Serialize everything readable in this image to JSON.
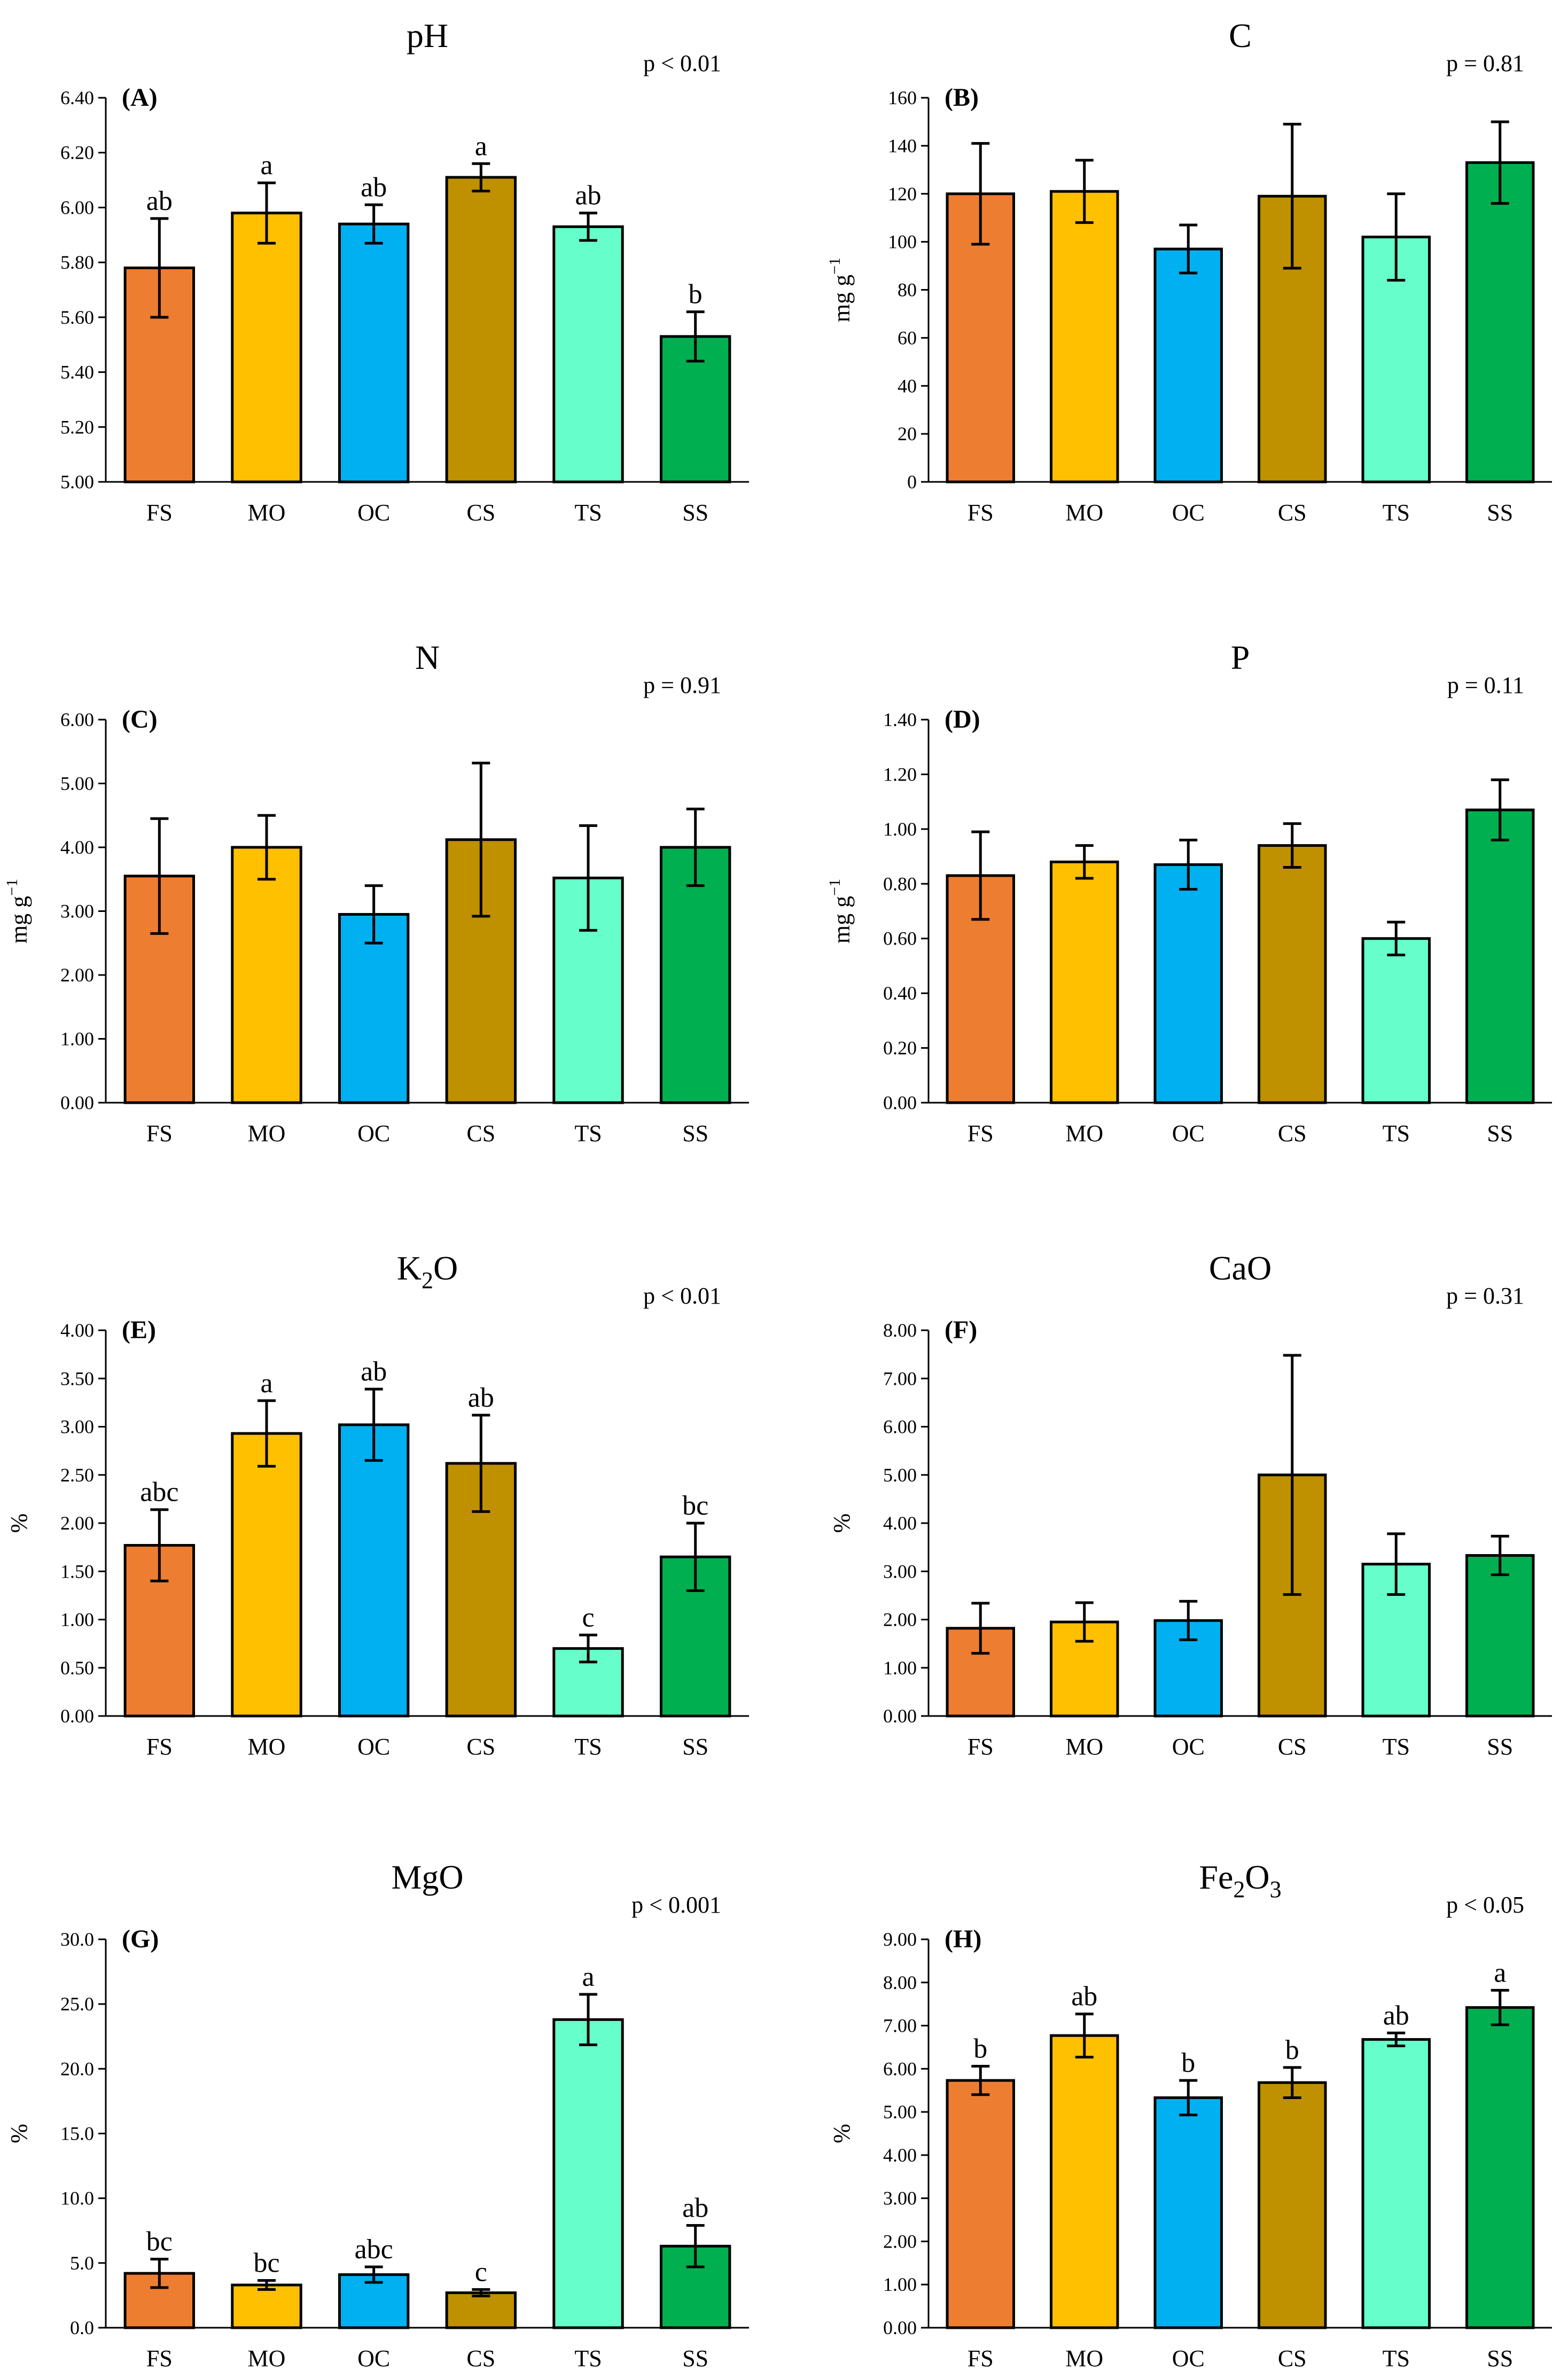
{
  "figure": {
    "categories": [
      "FS",
      "MO",
      "OC",
      "CS",
      "TS",
      "SS"
    ],
    "bar_colors": [
      "#ed7d31",
      "#ffc000",
      "#00b0f0",
      "#bf9000",
      "#66ffcc",
      "#00b050"
    ]
  },
  "chart_data": [
    {
      "type": "bar",
      "panel": "(A)",
      "title": "pH",
      "title_sub": "",
      "title_tail": "",
      "pvalue": "p < 0.01",
      "ylabel": "",
      "ylabel_sup": "",
      "ylim": [
        5.0,
        6.4
      ],
      "yticks": [
        "5.00",
        "5.20",
        "5.40",
        "5.60",
        "5.80",
        "6.00",
        "6.20",
        "6.40"
      ],
      "categories": [
        "FS",
        "MO",
        "OC",
        "CS",
        "TS",
        "SS"
      ],
      "values": [
        5.78,
        5.98,
        5.94,
        6.11,
        5.93,
        5.53
      ],
      "errors": [
        0.18,
        0.11,
        0.07,
        0.05,
        0.05,
        0.09
      ],
      "letters": [
        "ab",
        "a",
        "ab",
        "a",
        "ab",
        "b"
      ]
    },
    {
      "type": "bar",
      "panel": "(B)",
      "title": "C",
      "title_sub": "",
      "title_tail": "",
      "pvalue": "p = 0.81",
      "ylabel": "mg g",
      "ylabel_sup": "−1",
      "ylim": [
        0,
        160
      ],
      "yticks": [
        "0",
        "20",
        "40",
        "60",
        "80",
        "100",
        "120",
        "140",
        "160"
      ],
      "categories": [
        "FS",
        "MO",
        "OC",
        "CS",
        "TS",
        "SS"
      ],
      "values": [
        120,
        121,
        97,
        119,
        102,
        133
      ],
      "errors": [
        21,
        13,
        10,
        30,
        18,
        17
      ],
      "letters": [
        "",
        "",
        "",
        "",
        "",
        ""
      ]
    },
    {
      "type": "bar",
      "panel": "(C)",
      "title": "N",
      "title_sub": "",
      "title_tail": "",
      "pvalue": "p = 0.91",
      "ylabel": "mg g",
      "ylabel_sup": "−1",
      "ylim": [
        0,
        6
      ],
      "yticks": [
        "0.00",
        "1.00",
        "2.00",
        "3.00",
        "4.00",
        "5.00",
        "6.00"
      ],
      "categories": [
        "FS",
        "MO",
        "OC",
        "CS",
        "TS",
        "SS"
      ],
      "values": [
        3.55,
        4.0,
        2.95,
        4.12,
        3.52,
        4.0
      ],
      "errors": [
        0.9,
        0.5,
        0.45,
        1.2,
        0.82,
        0.6
      ],
      "letters": [
        "",
        "",
        "",
        "",
        "",
        ""
      ]
    },
    {
      "type": "bar",
      "panel": "(D)",
      "title": "P",
      "title_sub": "",
      "title_tail": "",
      "pvalue": "p = 0.11",
      "ylabel": "mg g",
      "ylabel_sup": "−1",
      "ylim": [
        0,
        1.4
      ],
      "yticks": [
        "0.00",
        "0.20",
        "0.40",
        "0.60",
        "0.80",
        "1.00",
        "1.20",
        "1.40"
      ],
      "categories": [
        "FS",
        "MO",
        "OC",
        "CS",
        "TS",
        "SS"
      ],
      "values": [
        0.83,
        0.88,
        0.87,
        0.94,
        0.6,
        1.07
      ],
      "errors": [
        0.16,
        0.06,
        0.09,
        0.08,
        0.06,
        0.11
      ],
      "letters": [
        "",
        "",
        "",
        "",
        "",
        ""
      ]
    },
    {
      "type": "bar",
      "panel": "(E)",
      "title": "K",
      "title_sub": "2",
      "title_tail": "O",
      "pvalue": "p < 0.01",
      "ylabel": "%",
      "ylabel_sup": "",
      "ylim": [
        0,
        4
      ],
      "yticks": [
        "0.00",
        "0.50",
        "1.00",
        "1.50",
        "2.00",
        "2.50",
        "3.00",
        "3.50",
        "4.00"
      ],
      "categories": [
        "FS",
        "MO",
        "OC",
        "CS",
        "TS",
        "SS"
      ],
      "values": [
        1.77,
        2.93,
        3.02,
        2.62,
        0.7,
        1.65
      ],
      "errors": [
        0.37,
        0.34,
        0.37,
        0.5,
        0.14,
        0.35
      ],
      "letters": [
        "abc",
        "a",
        "ab",
        "ab",
        "c",
        "bc"
      ]
    },
    {
      "type": "bar",
      "panel": "(F)",
      "title": "CaO",
      "title_sub": "",
      "title_tail": "",
      "pvalue": "p = 0.31",
      "ylabel": "%",
      "ylabel_sup": "",
      "ylim": [
        0,
        8
      ],
      "yticks": [
        "0.00",
        "1.00",
        "2.00",
        "3.00",
        "4.00",
        "5.00",
        "6.00",
        "7.00",
        "8.00"
      ],
      "categories": [
        "FS",
        "MO",
        "OC",
        "CS",
        "TS",
        "SS"
      ],
      "values": [
        1.82,
        1.95,
        1.98,
        5.0,
        3.15,
        3.33
      ],
      "errors": [
        0.52,
        0.4,
        0.4,
        2.48,
        0.63,
        0.4
      ],
      "letters": [
        "",
        "",
        "",
        "",
        "",
        ""
      ]
    },
    {
      "type": "bar",
      "panel": "(G)",
      "title": "MgO",
      "title_sub": "",
      "title_tail": "",
      "pvalue": "p < 0.001",
      "ylabel": "%",
      "ylabel_sup": "",
      "ylim": [
        0,
        30
      ],
      "yticks": [
        "0.0",
        "5.0",
        "10.0",
        "15.0",
        "20.0",
        "25.0",
        "30.0"
      ],
      "categories": [
        "FS",
        "MO",
        "OC",
        "CS",
        "TS",
        "SS"
      ],
      "values": [
        4.2,
        3.3,
        4.1,
        2.7,
        23.8,
        6.3
      ],
      "errors": [
        1.1,
        0.35,
        0.6,
        0.25,
        1.95,
        1.6
      ],
      "letters": [
        "bc",
        "bc",
        "abc",
        "c",
        "a",
        "ab"
      ]
    },
    {
      "type": "bar",
      "panel": "(H)",
      "title": "Fe",
      "title_sub": "2",
      "title_tail": "O",
      "title_sub2": "3",
      "pvalue": "p < 0.05",
      "ylabel": "%",
      "ylabel_sup": "",
      "ylim": [
        0,
        9
      ],
      "yticks": [
        "0.00",
        "1.00",
        "2.00",
        "3.00",
        "4.00",
        "5.00",
        "6.00",
        "7.00",
        "8.00",
        "9.00"
      ],
      "categories": [
        "FS",
        "MO",
        "OC",
        "CS",
        "TS",
        "SS"
      ],
      "values": [
        5.73,
        6.77,
        5.33,
        5.68,
        6.68,
        7.42
      ],
      "errors": [
        0.33,
        0.5,
        0.4,
        0.35,
        0.15,
        0.4
      ],
      "letters": [
        "b",
        "ab",
        "b",
        "b",
        "ab",
        "a"
      ]
    }
  ]
}
